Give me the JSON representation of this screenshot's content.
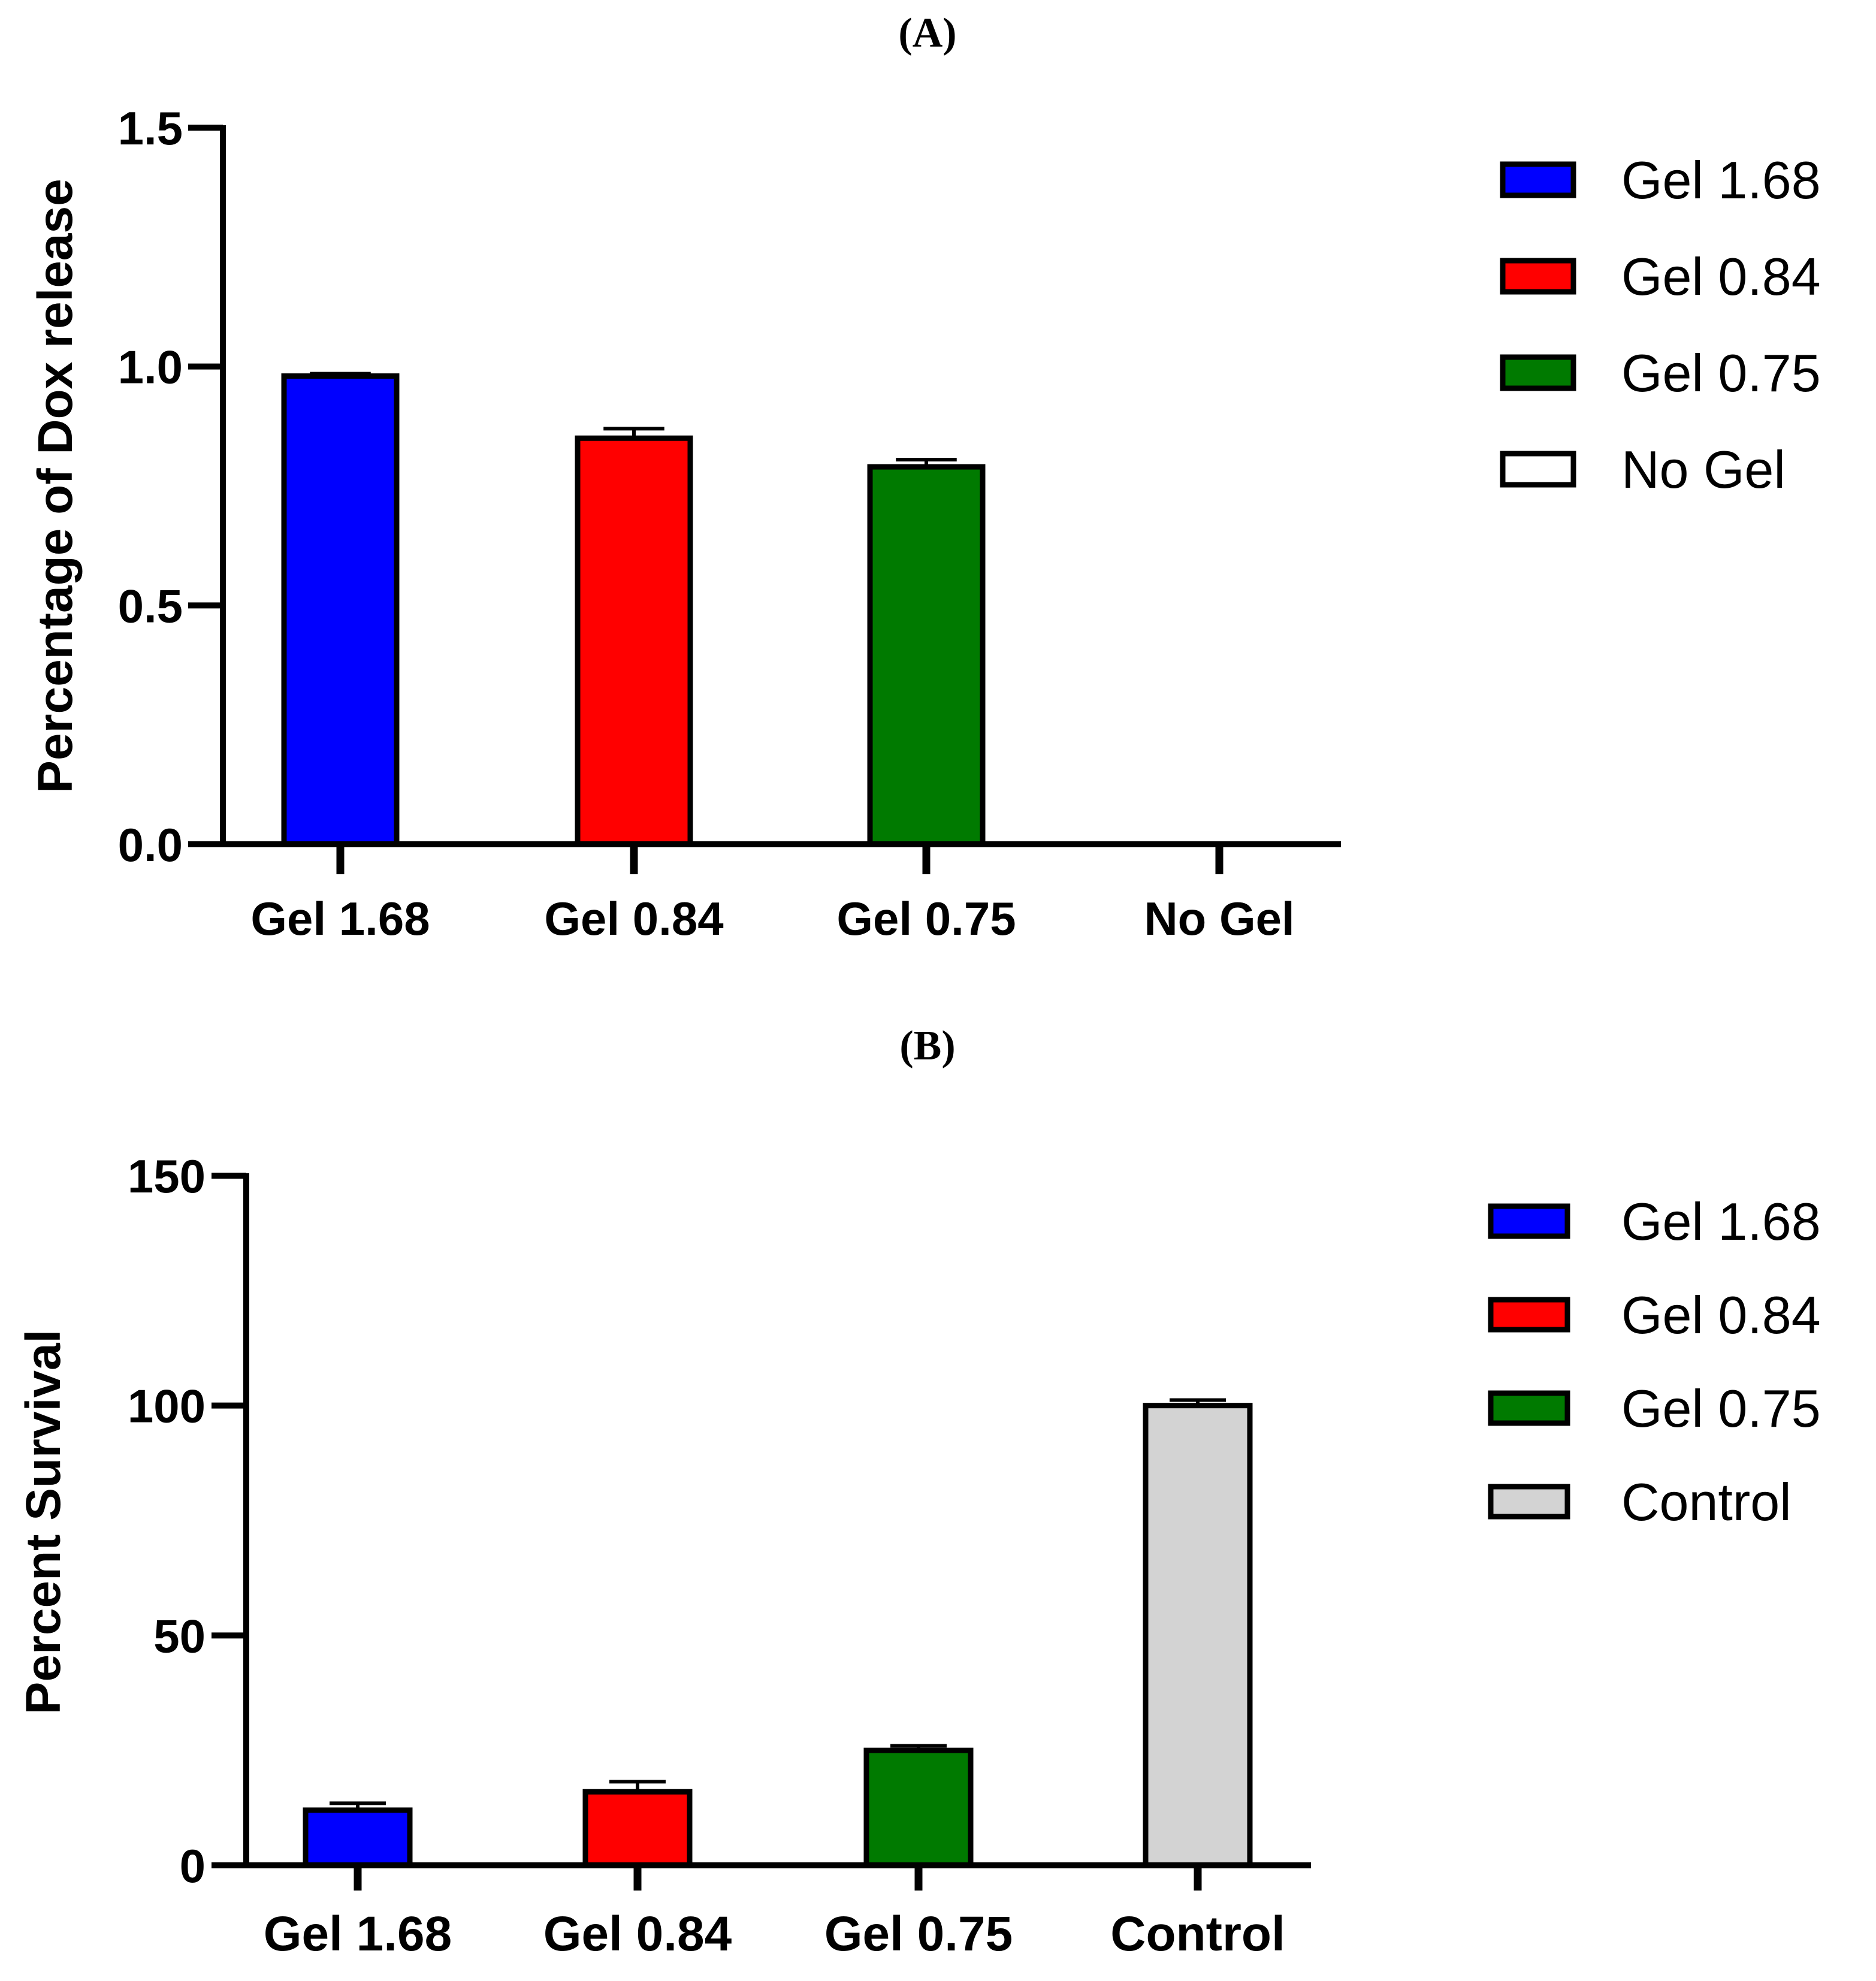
{
  "chart_data": [
    {
      "type": "bar",
      "panel_label": "(A)",
      "title": "",
      "xlabel": "",
      "ylabel": "Percentage of  Dox release",
      "ylim": [
        0,
        1.5
      ],
      "yticks": [
        0.0,
        0.5,
        1.0,
        1.5
      ],
      "ytick_labels": [
        "0.0",
        "0.5",
        "1.0",
        "1.5"
      ],
      "categories": [
        "Gel 1.68",
        "Gel 0.84",
        "Gel 0.75",
        "No Gel"
      ],
      "values": [
        0.98,
        0.85,
        0.79,
        0
      ],
      "errors": [
        0.005,
        0.02,
        0.015,
        0
      ],
      "colors": [
        "#0000ff",
        "#ff0000",
        "#007a00",
        "#ffffff"
      ],
      "legend": {
        "position": "right",
        "entries": [
          "Gel 1.68",
          "Gel 0.84",
          "Gel 0.75",
          "No Gel"
        ]
      },
      "grid": false
    },
    {
      "type": "bar",
      "panel_label": "(B)",
      "title": "",
      "xlabel": "",
      "ylabel": "Percent Survival",
      "ylim": [
        0,
        150
      ],
      "yticks": [
        0,
        50,
        100,
        150
      ],
      "ytick_labels": [
        "0",
        "50",
        "100",
        "150"
      ],
      "categories": [
        "Gel 1.68",
        "Gel 0.84",
        "Gel 0.75",
        "Control"
      ],
      "values": [
        12,
        16,
        25,
        100
      ],
      "errors": [
        1.5,
        2.2,
        1.0,
        1.2
      ],
      "colors": [
        "#0000ff",
        "#ff0000",
        "#007a00",
        "#d3d3d3"
      ],
      "legend": {
        "position": "right",
        "entries": [
          "Gel 1.68",
          "Gel 0.84",
          "Gel 0.75",
          "Control"
        ]
      },
      "grid": false
    }
  ]
}
